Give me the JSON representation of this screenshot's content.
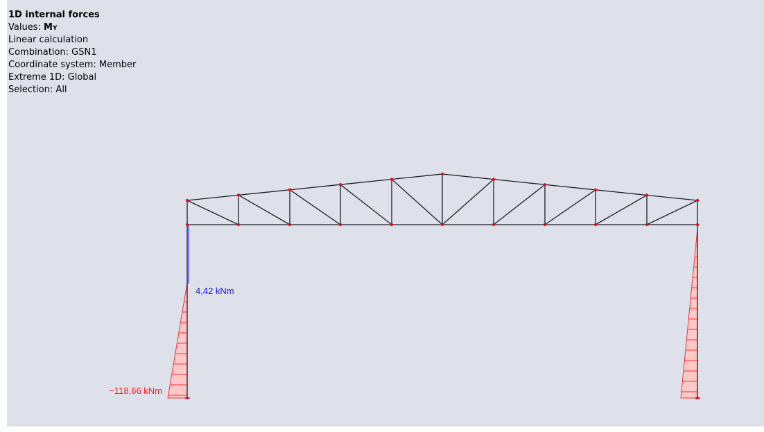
{
  "info": {
    "title": "1D internal forces",
    "values_prefix": "Values:",
    "values_symbol": "M",
    "values_subscript": "Y",
    "lines": [
      "Linear calculation",
      "Combination: GSN1",
      "Coordinate system: Member",
      "Extreme 1D: Global",
      "Selection: All"
    ]
  },
  "labels": {
    "positive": "4,42 kNm",
    "negative": "−118,66 kNm"
  }
}
